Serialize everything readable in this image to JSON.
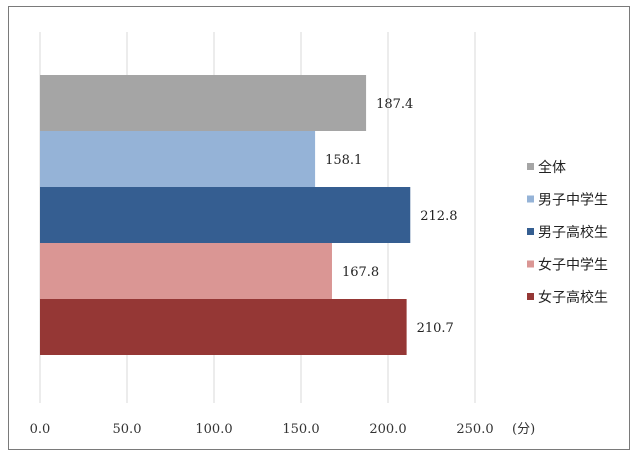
{
  "chart_data": {
    "type": "bar",
    "orientation": "horizontal",
    "categories": [
      "全体",
      "男子中学生",
      "男子高校生",
      "女子中学生",
      "女子高校生"
    ],
    "values": [
      187.4,
      158.1,
      212.8,
      167.8,
      210.7
    ],
    "value_labels": [
      "187.4",
      "158.1",
      "212.8",
      "167.8",
      "210.7"
    ],
    "colors": [
      "#a5a5a5",
      "#95b3d7",
      "#355e91",
      "#da9694",
      "#953735"
    ],
    "xlim": [
      0,
      250
    ],
    "xticks": [
      "0.0",
      "50.0",
      "100.0",
      "150.0",
      "200.0",
      "250.0"
    ],
    "unit_label": "(分)",
    "grid": "vertical",
    "legend_position": "right"
  }
}
